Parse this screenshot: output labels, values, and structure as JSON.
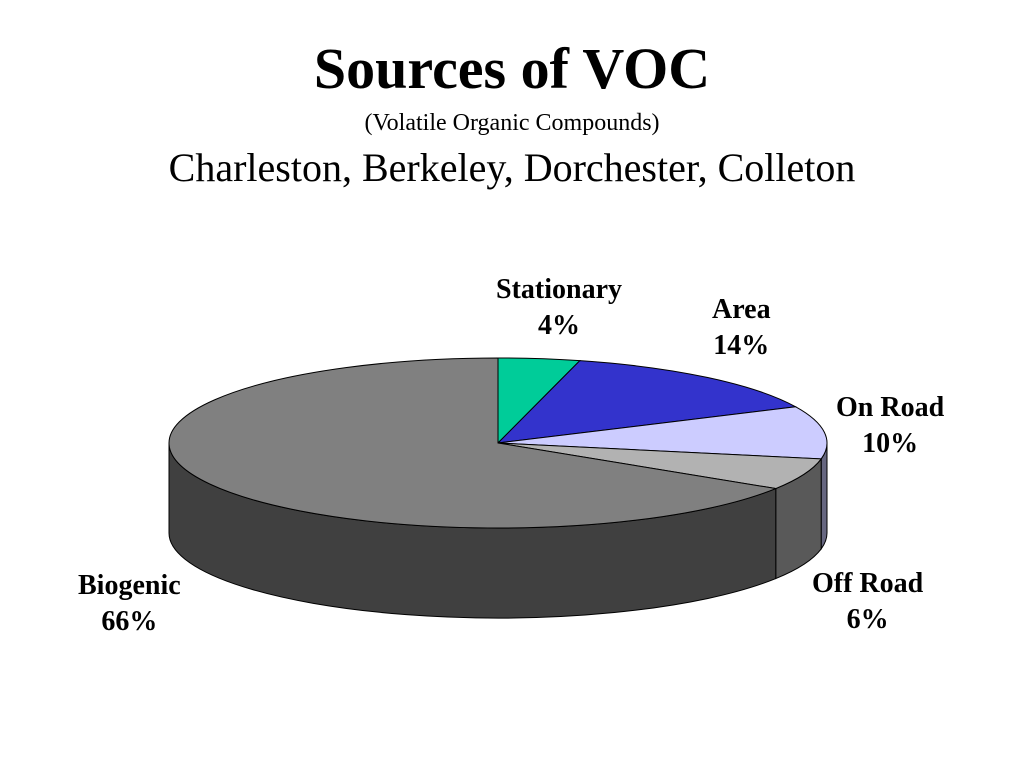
{
  "header": {
    "title": "Sources of VOC",
    "subtitle": "(Volatile Organic Compounds)",
    "subtitle2": "Charleston, Berkeley, Dorchester, Colleton"
  },
  "chart_data": {
    "type": "pie",
    "style": "3d",
    "title": "Sources of VOC",
    "subtitle": "(Volatile Organic Compounds) Charleston, Berkeley, Dorchester, Colleton",
    "slices": [
      {
        "name": "Stationary",
        "value": 4,
        "value_label": "4%",
        "color": "#00cc99"
      },
      {
        "name": "Area",
        "value": 14,
        "value_label": "14%",
        "color": "#3333cc"
      },
      {
        "name": "On Road",
        "value": 10,
        "value_label": "10%",
        "color": "#ccccff"
      },
      {
        "name": "Off Road",
        "value": 6,
        "value_label": "6%",
        "color": "#b2b2b2"
      },
      {
        "name": "Biogenic",
        "value": 66,
        "value_label": "66%",
        "color": "#808080"
      }
    ]
  }
}
